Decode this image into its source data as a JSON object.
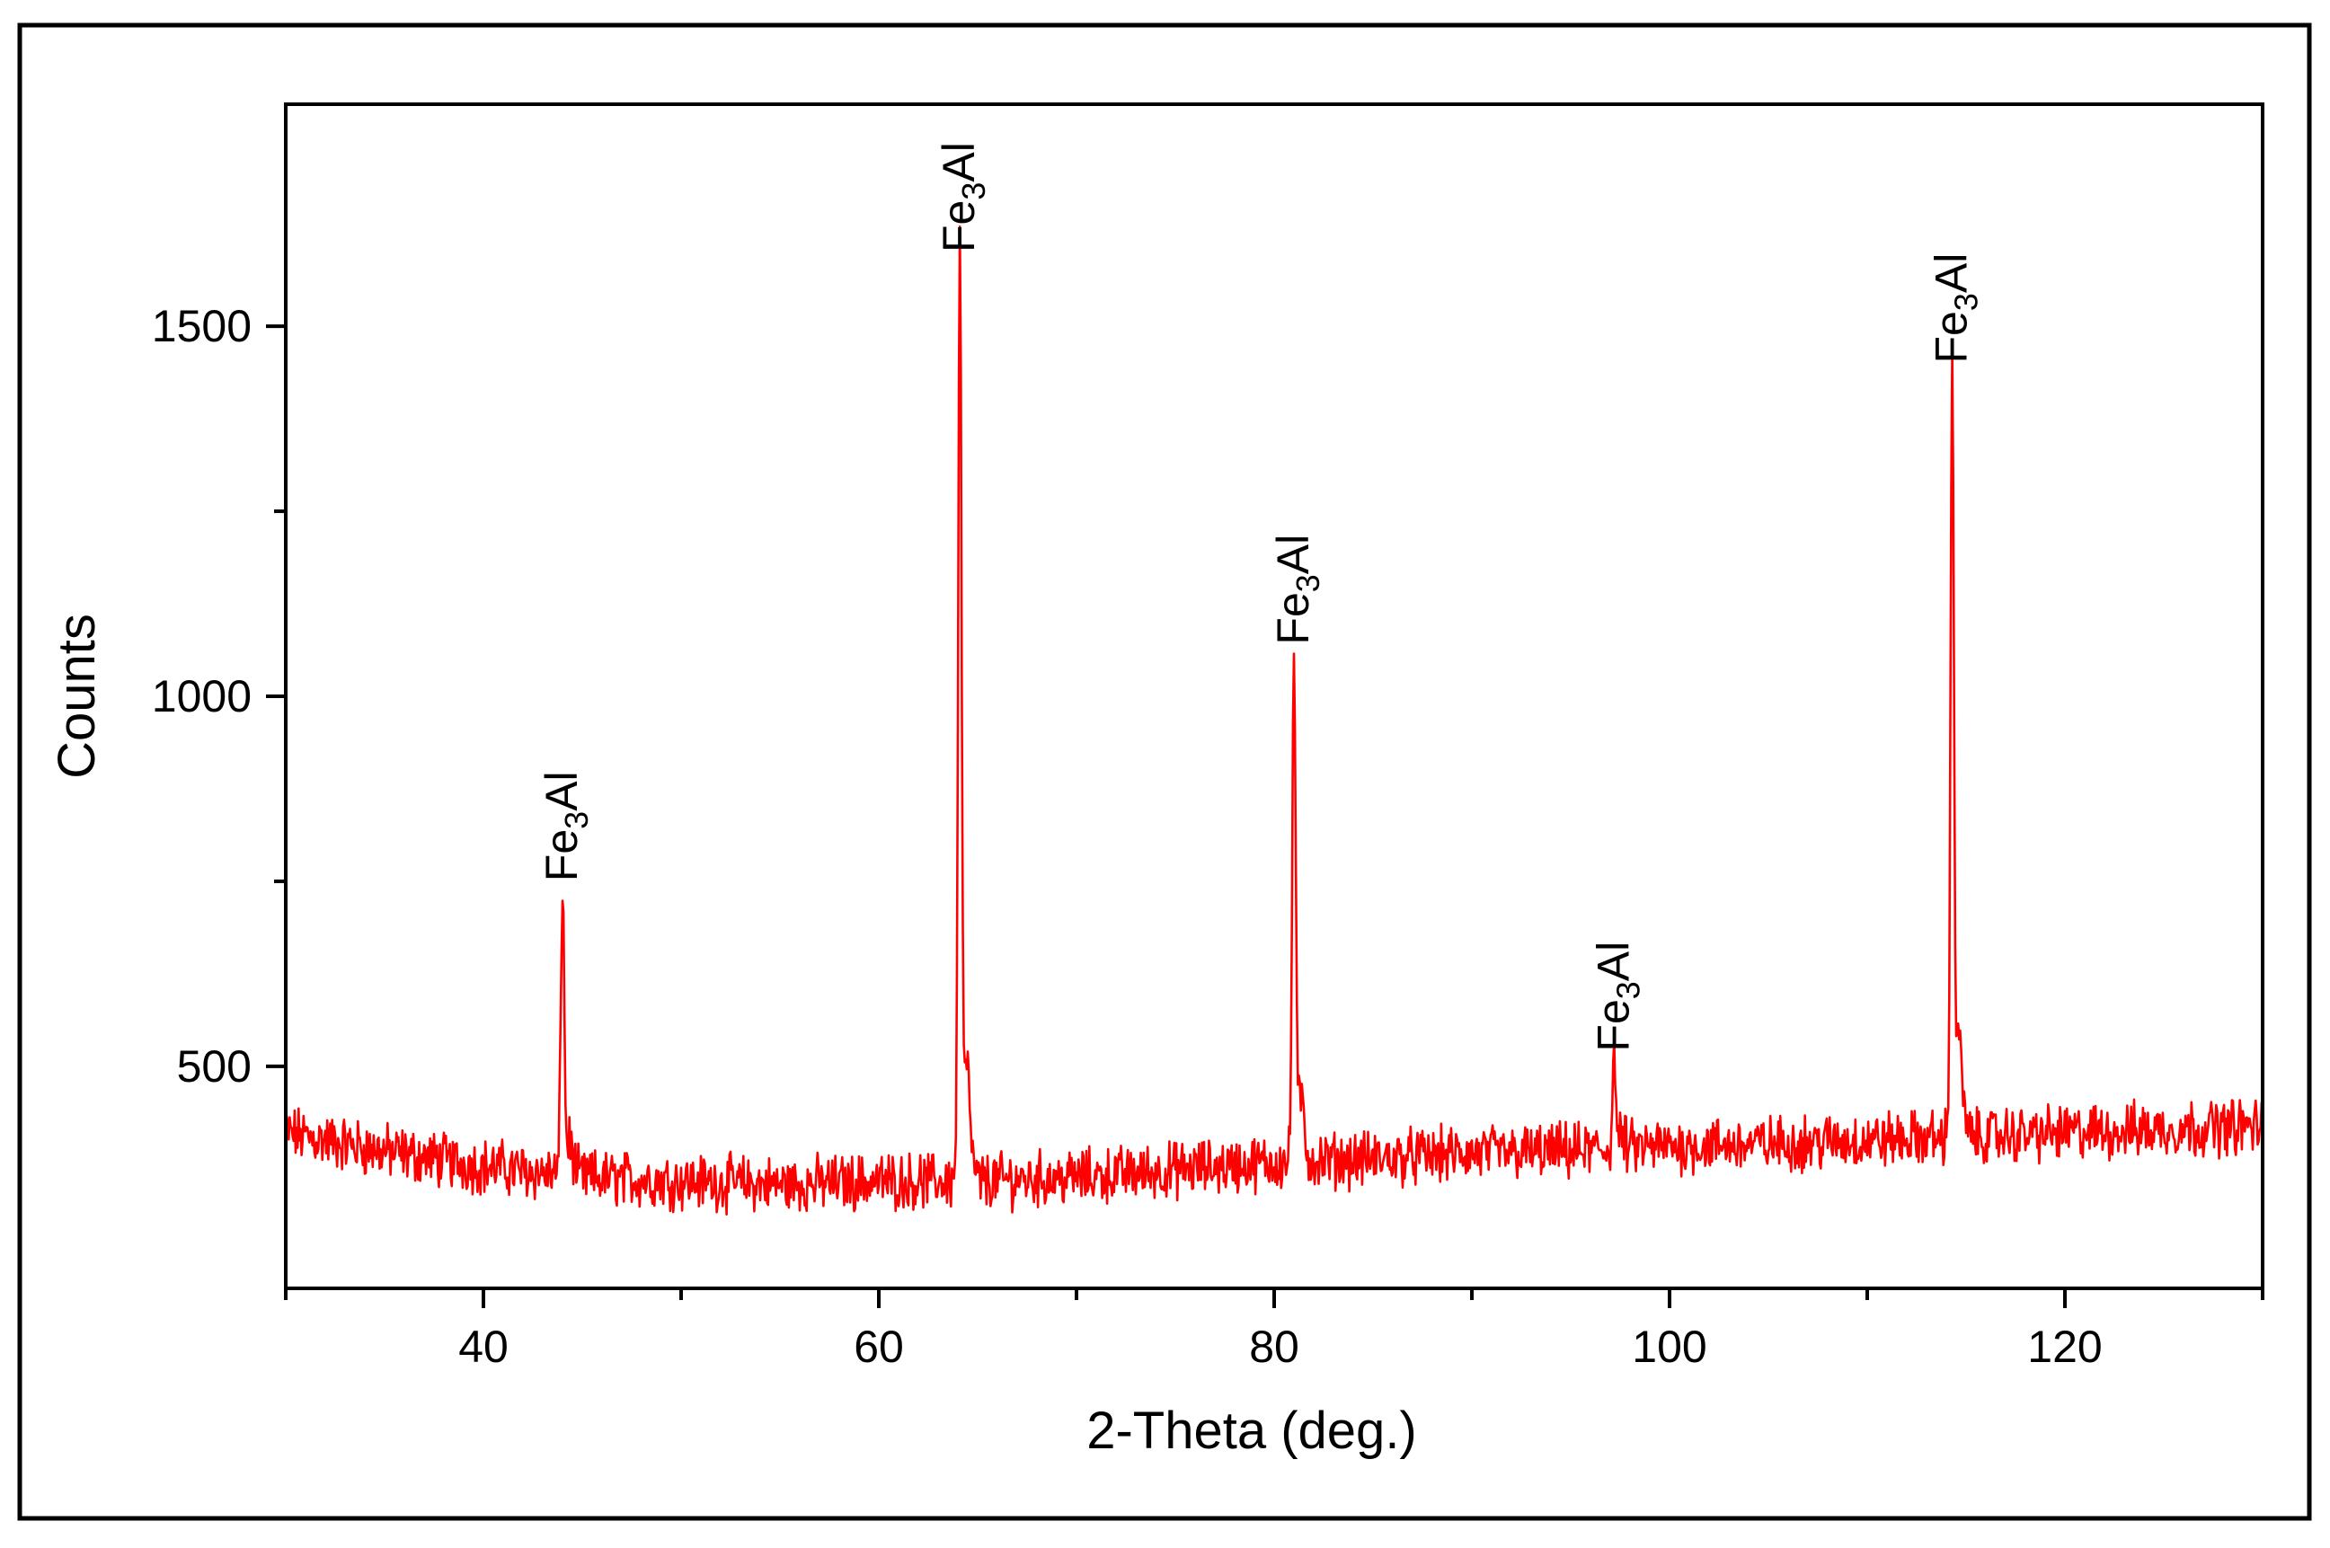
{
  "chart_data": {
    "type": "line",
    "title": "",
    "xlabel": "2-Theta (deg.)",
    "ylabel": "Counts",
    "xlim": [
      30,
      130
    ],
    "ylim": [
      200,
      1800
    ],
    "xticks": [
      40,
      60,
      80,
      100,
      120
    ],
    "xticks_minor": [
      30,
      50,
      70,
      90,
      110,
      130
    ],
    "yticks": [
      500,
      1000,
      1500
    ],
    "yticks_minor": [
      750,
      1250
    ],
    "grid": false,
    "legend": "none",
    "series": [
      {
        "color": "#ff0000",
        "baseline": [
          {
            "x": 30,
            "y": 410
          },
          {
            "x": 35,
            "y": 385
          },
          {
            "x": 40,
            "y": 365
          },
          {
            "x": 45,
            "y": 350
          },
          {
            "x": 50,
            "y": 345
          },
          {
            "x": 55,
            "y": 340
          },
          {
            "x": 60,
            "y": 345
          },
          {
            "x": 65,
            "y": 345
          },
          {
            "x": 70,
            "y": 350
          },
          {
            "x": 75,
            "y": 360
          },
          {
            "x": 80,
            "y": 370
          },
          {
            "x": 85,
            "y": 375
          },
          {
            "x": 90,
            "y": 382
          },
          {
            "x": 95,
            "y": 385
          },
          {
            "x": 100,
            "y": 392
          },
          {
            "x": 105,
            "y": 395
          },
          {
            "x": 110,
            "y": 400
          },
          {
            "x": 115,
            "y": 405
          },
          {
            "x": 120,
            "y": 410
          },
          {
            "x": 125,
            "y": 415
          },
          {
            "x": 130,
            "y": 420
          }
        ],
        "peaks": [
          {
            "x": 44.0,
            "y": 740
          },
          {
            "x": 64.1,
            "y": 1590
          },
          {
            "x": 81.0,
            "y": 1060
          },
          {
            "x": 97.2,
            "y": 510
          },
          {
            "x": 114.3,
            "y": 1440
          }
        ]
      }
    ],
    "annotations": [
      {
        "x": 44.0,
        "y": 740,
        "text": "Fe",
        "sub": "3",
        "tail": "Al"
      },
      {
        "x": 64.1,
        "y": 1590,
        "text": "Fe",
        "sub": "3",
        "tail": "Al"
      },
      {
        "x": 81.0,
        "y": 1060,
        "text": "Fe",
        "sub": "3",
        "tail": "Al"
      },
      {
        "x": 97.2,
        "y": 510,
        "text": "Fe",
        "sub": "3",
        "tail": "Al"
      },
      {
        "x": 114.3,
        "y": 1440,
        "text": "Fe",
        "sub": "3",
        "tail": "Al"
      }
    ]
  },
  "colors": {
    "trace": "#ff0000",
    "axis": "#000000",
    "frame": "#000000",
    "background": "#ffffff"
  }
}
